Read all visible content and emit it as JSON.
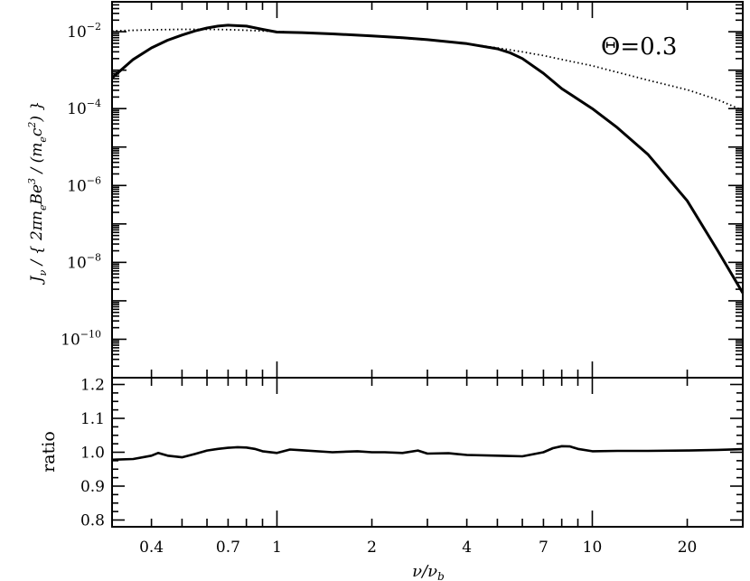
{
  "chart_data": [
    {
      "type": "line",
      "panel": "top",
      "annotation": "Θ=0.3",
      "ylabel_parts": [
        "J",
        "ν",
        " / { 2πn",
        "e",
        "Be",
        "3",
        " / (m",
        "e",
        "c",
        "2",
        ") }"
      ],
      "xscale": "log",
      "yscale": "log",
      "xlim": [
        0.3,
        30
      ],
      "ylim": [
        1e-11,
        0.06
      ],
      "y_ticks": [
        {
          "value": 0.01,
          "base": "10",
          "exp": "−2"
        },
        {
          "value": 0.0001,
          "base": "10",
          "exp": "−4"
        },
        {
          "value": 1e-06,
          "base": "10",
          "exp": "−6"
        },
        {
          "value": 1e-08,
          "base": "10",
          "exp": "−8"
        },
        {
          "value": 1e-10,
          "base": "10",
          "exp": "−10"
        }
      ],
      "series": [
        {
          "style": "solid",
          "x": [
            0.3,
            0.35,
            0.4,
            0.45,
            0.5,
            0.55,
            0.6,
            0.65,
            0.7,
            0.8,
            0.9,
            1.0,
            1.2,
            1.5,
            2.0,
            2.5,
            3.0,
            4.0,
            5.0,
            5.5,
            6.0,
            7.0,
            8.0,
            10.0,
            12.0,
            15.0,
            20.0,
            25.0,
            30.0
          ],
          "y": [
            0.00063,
            0.0019,
            0.0038,
            0.006,
            0.0082,
            0.0105,
            0.0125,
            0.014,
            0.0148,
            0.014,
            0.0115,
            0.0098,
            0.0095,
            0.0088,
            0.0078,
            0.007,
            0.0062,
            0.0049,
            0.0036,
            0.0028,
            0.002,
            0.00083,
            0.00033,
            0.0001,
            3.2e-05,
            6.5e-06,
            4e-07,
            2e-08,
            1.6e-09
          ]
        },
        {
          "style": "dotted",
          "x": [
            0.3,
            0.4,
            0.5,
            0.6,
            0.7,
            0.8,
            1.0,
            1.5,
            2.0,
            3.0,
            4.0,
            5.0,
            6.0,
            7.0,
            8.0,
            10.0,
            15.0,
            20.0,
            25.0,
            30.0
          ],
          "y": [
            0.0105,
            0.0112,
            0.0115,
            0.0115,
            0.0113,
            0.0109,
            0.0101,
            0.0087,
            0.0077,
            0.0061,
            0.0049,
            0.0038,
            0.003,
            0.0024,
            0.0019,
            0.0013,
            0.00055,
            0.00031,
            0.00017,
            9e-05
          ]
        }
      ]
    },
    {
      "type": "line",
      "panel": "bottom",
      "xlabel": "ν/ν",
      "xlabel_sub": "b",
      "ylabel": "ratio",
      "xscale": "log",
      "xlim": [
        0.3,
        30
      ],
      "ylim": [
        0.78,
        1.22
      ],
      "x_ticks": [
        "0.4",
        "0.7",
        "1",
        "2",
        "4",
        "7",
        "10",
        "20"
      ],
      "y_ticks": [
        "0.8",
        "0.9",
        "1.0",
        "1.1",
        "1.2"
      ],
      "series": [
        {
          "style": "solid",
          "x": [
            0.3,
            0.35,
            0.4,
            0.42,
            0.45,
            0.5,
            0.55,
            0.6,
            0.65,
            0.7,
            0.75,
            0.8,
            0.85,
            0.9,
            1.0,
            1.1,
            1.2,
            1.5,
            1.8,
            2.0,
            2.2,
            2.5,
            2.8,
            3.0,
            3.5,
            4.0,
            5.0,
            6.0,
            7.0,
            7.5,
            8.0,
            8.5,
            9.0,
            10.0,
            12.0,
            15.0,
            20.0,
            25.0,
            30.0
          ],
          "y": [
            0.978,
            0.98,
            0.99,
            0.998,
            0.99,
            0.985,
            0.995,
            1.005,
            1.01,
            1.013,
            1.015,
            1.014,
            1.01,
            1.003,
            0.998,
            1.008,
            1.006,
            1.0,
            1.003,
            1.0,
            1.0,
            0.998,
            1.005,
            0.996,
            0.997,
            0.992,
            0.99,
            0.988,
            1.0,
            1.012,
            1.018,
            1.017,
            1.01,
            1.003,
            1.004,
            1.004,
            1.005,
            1.007,
            1.009
          ]
        }
      ]
    }
  ]
}
